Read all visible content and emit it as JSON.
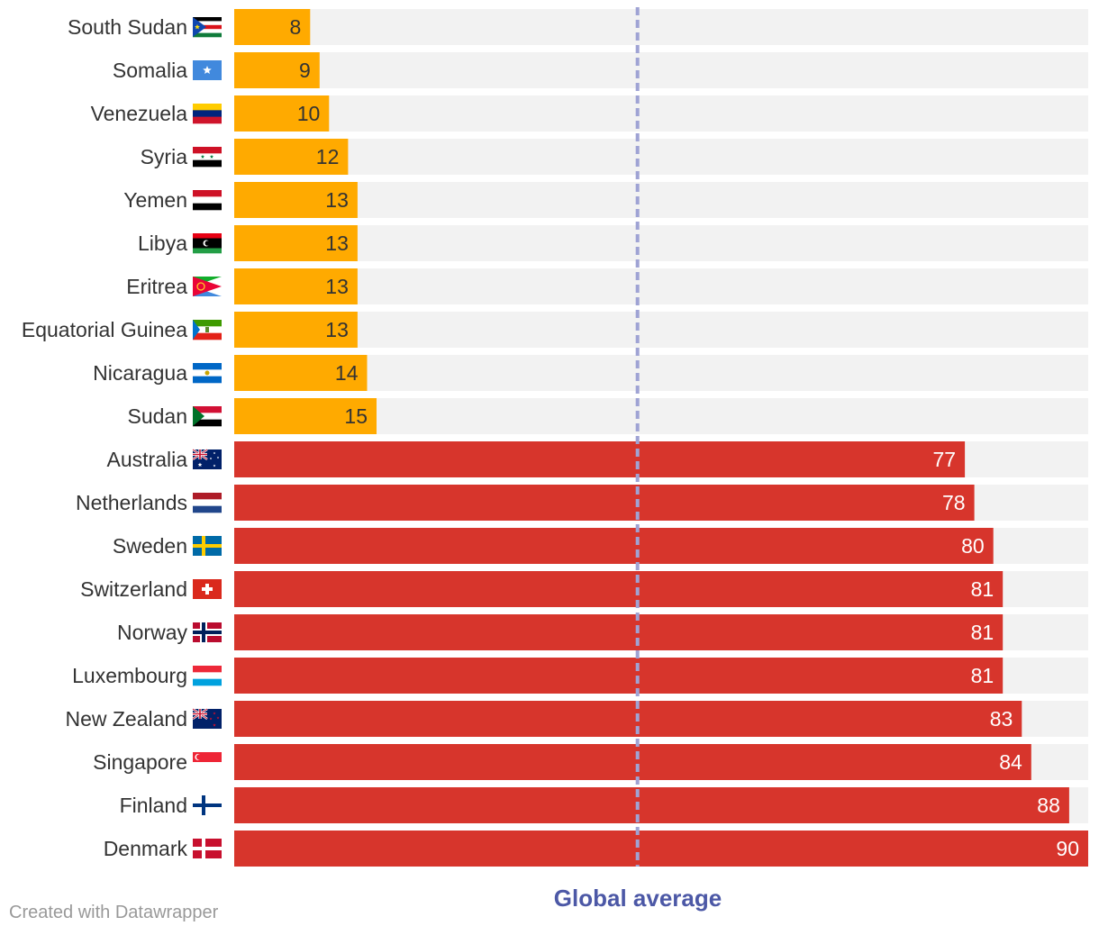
{
  "chart_data": {
    "type": "bar",
    "orientation": "horizontal",
    "categories": [
      "South Sudan",
      "Somalia",
      "Venezuela",
      "Syria",
      "Yemen",
      "Libya",
      "Eritrea",
      "Equatorial Guinea",
      "Nicaragua",
      "Sudan",
      "Australia",
      "Netherlands",
      "Sweden",
      "Switzerland",
      "Norway",
      "Luxembourg",
      "New Zealand",
      "Singapore",
      "Finland",
      "Denmark"
    ],
    "values": [
      8,
      9,
      10,
      12,
      13,
      13,
      13,
      13,
      14,
      15,
      77,
      78,
      80,
      81,
      81,
      81,
      83,
      84,
      88,
      90
    ],
    "groups": [
      "low",
      "low",
      "low",
      "low",
      "low",
      "low",
      "low",
      "low",
      "low",
      "low",
      "high",
      "high",
      "high",
      "high",
      "high",
      "high",
      "high",
      "high",
      "high",
      "high"
    ],
    "flag_icons": [
      "south-sudan-flag-icon",
      "somalia-flag-icon",
      "venezuela-flag-icon",
      "syria-flag-icon",
      "yemen-flag-icon",
      "libya-flag-icon",
      "eritrea-flag-icon",
      "equatorial-guinea-flag-icon",
      "nicaragua-flag-icon",
      "sudan-flag-icon",
      "australia-flag-icon",
      "netherlands-flag-icon",
      "sweden-flag-icon",
      "switzerland-flag-icon",
      "norway-flag-icon",
      "luxembourg-flag-icon",
      "new-zealand-flag-icon",
      "singapore-flag-icon",
      "finland-flag-icon",
      "denmark-flag-icon"
    ],
    "xlim": [
      0,
      90
    ],
    "reference_line": {
      "label": "Global average",
      "value": 42.5
    },
    "colors": {
      "low": "#ffaa00",
      "high": "#d7352c",
      "track": "#f2f2f2",
      "reference": "#9fa3d4",
      "reference_label": "#4c58a6",
      "low_text": "#333333",
      "high_text": "#ffffff"
    },
    "title": "",
    "xlabel": "",
    "ylabel": ""
  },
  "footer": {
    "credit": "Created with Datawrapper"
  }
}
